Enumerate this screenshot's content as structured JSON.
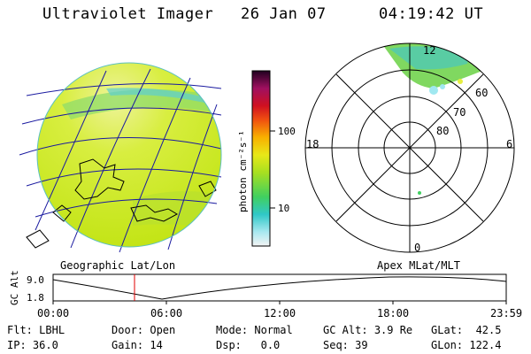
{
  "header": {
    "instrument": "Ultraviolet Imager",
    "date": "26 Jan 07",
    "time": "04:19:42 UT"
  },
  "colorbar": {
    "unit_label": "photon cm⁻²s⁻¹",
    "ticks": [
      "100",
      "10"
    ]
  },
  "polar": {
    "mlt_labels": [
      "12",
      "18",
      "6",
      "0"
    ],
    "mlat_labels": [
      "60",
      "70",
      "80"
    ]
  },
  "panel_labels": {
    "geographic": "Geographic Lat/Lon",
    "apex": "Apex MLat/MLT"
  },
  "altitude_plot": {
    "ylabel": "GC Alt",
    "yticks": [
      "9.0",
      "1.8"
    ],
    "xticks": [
      "00:00",
      "06:00",
      "12:00",
      "18:00",
      "23:59"
    ],
    "marker_time": "04:19:42"
  },
  "info": {
    "flt_label": "Flt:",
    "flt_value": "LBHL",
    "door_label": "Door:",
    "door_value": "Open",
    "mode_label": "Mode:",
    "mode_value": "Normal",
    "gcalt_label": "GC Alt:",
    "gcalt_value": "3.9 Re",
    "glat_label": "GLat:",
    "glat_value": "42.5",
    "ip_label": "IP:",
    "ip_value": "36.0",
    "gain_label": "Gain:",
    "gain_value": "14",
    "dsp_label": "Dsp:",
    "dsp_value": "0.0",
    "seq_label": "Seq:",
    "seq_value": "39",
    "glon_label": "GLon:",
    "glon_value": "122.4"
  },
  "colors": {
    "disk": "#c8e818",
    "disk_light": "#e6f07a",
    "grid": "#1a1aa0",
    "marker": "#e00000"
  }
}
